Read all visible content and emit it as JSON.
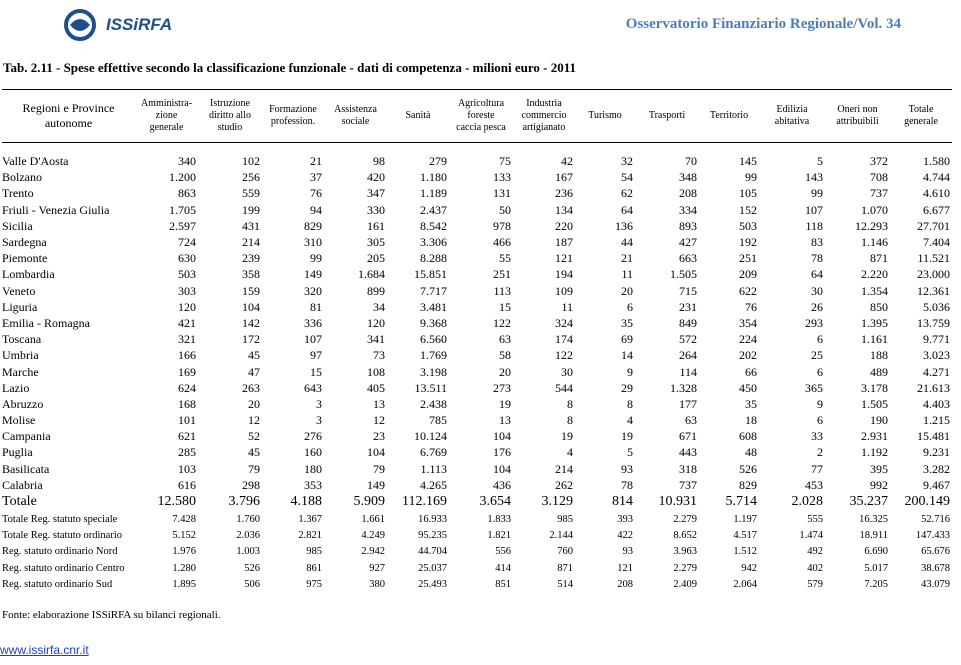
{
  "header": {
    "logo": "ISSiRFA",
    "series_title": "Osservatorio Finanziario Regionale/Vol. 34"
  },
  "table": {
    "title": "Tab. 2.11 - Spese effettive secondo la classificazione funzionale - dati di competenza - milioni euro - 2011",
    "columns": [
      "Regioni e Province\nautonome",
      "Amministra-\nzione\ngenerale",
      "Istruzione\ndiritto allo\nstudio",
      "Formazione\nprofession.",
      "Assistenza\nsociale",
      "Sanità",
      "Agricoltura\nforeste\ncaccia pesca",
      "Industria\ncommercio\nartigianato",
      "Turismo",
      "Trasporti",
      "Territorio",
      "Edilizia\nabitativa",
      "Oneri non\nattribuibili",
      "Totale\ngenerale"
    ],
    "rows": [
      [
        "Valle D'Aosta",
        "340",
        "102",
        "21",
        "98",
        "279",
        "75",
        "42",
        "32",
        "70",
        "145",
        "5",
        "372",
        "1.580"
      ],
      [
        "Bolzano",
        "1.200",
        "256",
        "37",
        "420",
        "1.180",
        "133",
        "167",
        "54",
        "348",
        "99",
        "143",
        "708",
        "4.744"
      ],
      [
        "Trento",
        "863",
        "559",
        "76",
        "347",
        "1.189",
        "131",
        "236",
        "62",
        "208",
        "105",
        "99",
        "737",
        "4.610"
      ],
      [
        "Friuli - Venezia Giulia",
        "1.705",
        "199",
        "94",
        "330",
        "2.437",
        "50",
        "134",
        "64",
        "334",
        "152",
        "107",
        "1.070",
        "6.677"
      ],
      [
        "Sicilia",
        "2.597",
        "431",
        "829",
        "161",
        "8.542",
        "978",
        "220",
        "136",
        "893",
        "503",
        "118",
        "12.293",
        "27.701"
      ],
      [
        "Sardegna",
        "724",
        "214",
        "310",
        "305",
        "3.306",
        "466",
        "187",
        "44",
        "427",
        "192",
        "83",
        "1.146",
        "7.404"
      ],
      [
        "Piemonte",
        "630",
        "239",
        "99",
        "205",
        "8.288",
        "55",
        "121",
        "21",
        "663",
        "251",
        "78",
        "871",
        "11.521"
      ],
      [
        "Lombardia",
        "503",
        "358",
        "149",
        "1.684",
        "15.851",
        "251",
        "194",
        "11",
        "1.505",
        "209",
        "64",
        "2.220",
        "23.000"
      ],
      [
        "Veneto",
        "303",
        "159",
        "320",
        "899",
        "7.717",
        "113",
        "109",
        "20",
        "715",
        "622",
        "30",
        "1.354",
        "12.361"
      ],
      [
        "Liguria",
        "120",
        "104",
        "81",
        "34",
        "3.481",
        "15",
        "11",
        "6",
        "231",
        "76",
        "26",
        "850",
        "5.036"
      ],
      [
        "Emilia - Romagna",
        "421",
        "142",
        "336",
        "120",
        "9.368",
        "122",
        "324",
        "35",
        "849",
        "354",
        "293",
        "1.395",
        "13.759"
      ],
      [
        "Toscana",
        "321",
        "172",
        "107",
        "341",
        "6.560",
        "63",
        "174",
        "69",
        "572",
        "224",
        "6",
        "1.161",
        "9.771"
      ],
      [
        "Umbria",
        "166",
        "45",
        "97",
        "73",
        "1.769",
        "58",
        "122",
        "14",
        "264",
        "202",
        "25",
        "188",
        "3.023"
      ],
      [
        "Marche",
        "169",
        "47",
        "15",
        "108",
        "3.198",
        "20",
        "30",
        "9",
        "114",
        "66",
        "6",
        "489",
        "4.271"
      ],
      [
        "Lazio",
        "624",
        "263",
        "643",
        "405",
        "13.511",
        "273",
        "544",
        "29",
        "1.328",
        "450",
        "365",
        "3.178",
        "21.613"
      ],
      [
        "Abruzzo",
        "168",
        "20",
        "3",
        "13",
        "2.438",
        "19",
        "8",
        "8",
        "177",
        "35",
        "9",
        "1.505",
        "4.403"
      ],
      [
        "Molise",
        "101",
        "12",
        "3",
        "12",
        "785",
        "13",
        "8",
        "4",
        "63",
        "18",
        "6",
        "190",
        "1.215"
      ],
      [
        "Campania",
        "621",
        "52",
        "276",
        "23",
        "10.124",
        "104",
        "19",
        "19",
        "671",
        "608",
        "33",
        "2.931",
        "15.481"
      ],
      [
        "Puglia",
        "285",
        "45",
        "160",
        "104",
        "6.769",
        "176",
        "4",
        "5",
        "443",
        "48",
        "2",
        "1.192",
        "9.231"
      ],
      [
        "Basilicata",
        "103",
        "79",
        "180",
        "79",
        "1.113",
        "104",
        "214",
        "93",
        "318",
        "526",
        "77",
        "395",
        "3.282"
      ],
      [
        "Calabria",
        "616",
        "298",
        "353",
        "149",
        "4.265",
        "436",
        "262",
        "78",
        "737",
        "829",
        "453",
        "992",
        "9.467"
      ],
      [
        "Totale",
        "12.580",
        "3.796",
        "4.188",
        "5.909",
        "112.169",
        "3.654",
        "3.129",
        "814",
        "10.931",
        "5.714",
        "2.028",
        "35.237",
        "200.149"
      ],
      [
        "Totale Reg. statuto speciale",
        "7.428",
        "1.760",
        "1.367",
        "1.661",
        "16.933",
        "1.833",
        "985",
        "393",
        "2.279",
        "1.197",
        "555",
        "16.325",
        "52.716"
      ],
      [
        "Totale Reg. statuto ordinario",
        "5.152",
        "2.036",
        "2.821",
        "4.249",
        "95.235",
        "1.821",
        "2.144",
        "422",
        "8.652",
        "4.517",
        "1.474",
        "18.911",
        "147.433"
      ],
      [
        "Reg. statuto ordinario Nord",
        "1.976",
        "1.003",
        "985",
        "2.942",
        "44.704",
        "556",
        "760",
        "93",
        "3.963",
        "1.512",
        "492",
        "6.690",
        "65.676"
      ],
      [
        "Reg. statuto ordinario Centro",
        "1.280",
        "526",
        "861",
        "927",
        "25.037",
        "414",
        "871",
        "121",
        "2.279",
        "942",
        "402",
        "5.017",
        "38.678"
      ],
      [
        "Reg. statuto ordinario Sud",
        "1.895",
        "506",
        "975",
        "380",
        "25.493",
        "851",
        "514",
        "208",
        "2.409",
        "2.064",
        "579",
        "7.205",
        "43.079"
      ]
    ],
    "footnote": "Fonte: elaborazione ISSiRFA su bilanci regionali."
  },
  "footer": {
    "link": "www.issirfa.cnr.it"
  }
}
